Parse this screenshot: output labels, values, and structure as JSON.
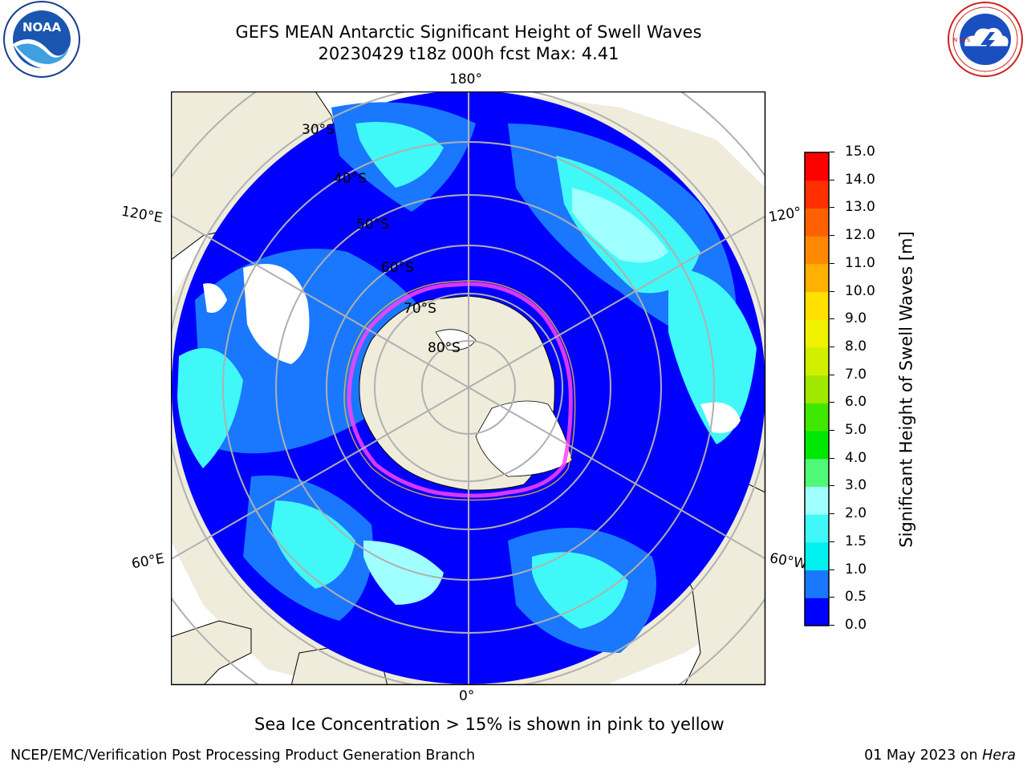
{
  "header": {
    "title_line1": "GEFS MEAN Antarctic Significant Height of Swell Waves",
    "title_line2": "20230429 t18z 000h fcst   Max: 4.41"
  },
  "logos": {
    "left": {
      "icon": "noaa-logo",
      "text": "NOAA"
    },
    "right": {
      "icon": "national-weather-service-logo",
      "text": "NATIONAL WEATHER SERVICE"
    }
  },
  "map": {
    "projection": "south-polar-stereographic",
    "longitude_labels": {
      "top": "180°",
      "bottom": "0°",
      "upper_left": "120°E",
      "upper_right": "120°",
      "lower_left": "60°E",
      "lower_right": "60°W"
    },
    "latitude_labels": [
      "30°S",
      "40°S",
      "50°S",
      "60°S",
      "70°S",
      "80°S"
    ],
    "colors": {
      "land": "#efecdc",
      "no_data": "#ffffff",
      "grid": "#b0b0b0"
    }
  },
  "colorbar": {
    "label": "Significant Height of Swell Waves [m]",
    "ticks": [
      "0.0",
      "0.5",
      "1.0",
      "1.5",
      "2.0",
      "3.0",
      "4.0",
      "5.0",
      "6.0",
      "7.0",
      "8.0",
      "9.0",
      "10.0",
      "11.0",
      "12.0",
      "13.0",
      "14.0",
      "15.0"
    ],
    "colors": [
      "#0000ff",
      "#1978ff",
      "#00f0f0",
      "#40f8f8",
      "#a0ffff",
      "#50f878",
      "#00e800",
      "#40e800",
      "#a0e800",
      "#d0f000",
      "#f0f000",
      "#ffe000",
      "#ffb000",
      "#ff8800",
      "#ff6000",
      "#ff3000",
      "#ff0000"
    ]
  },
  "legend_note": "Sea Ice Concentration > 15% is shown in pink to yellow",
  "footer": {
    "left": "NCEP/EMC/Verification Post Processing Product Generation Branch",
    "date": "01 May 2023 on ",
    "machine": "Hera"
  }
}
